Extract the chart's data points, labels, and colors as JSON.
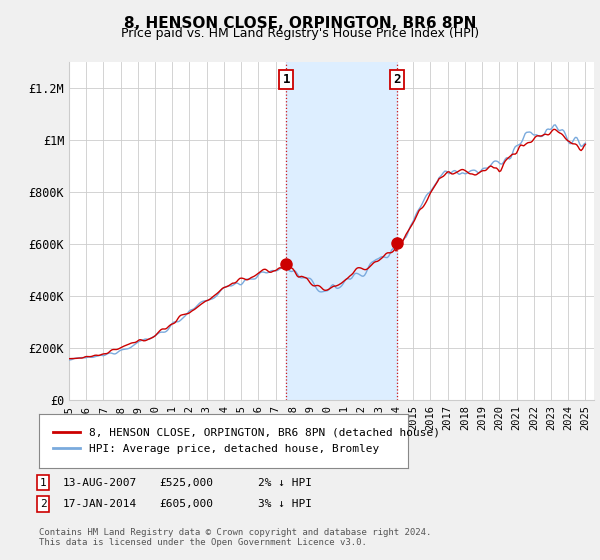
{
  "title": "8, HENSON CLOSE, ORPINGTON, BR6 8PN",
  "subtitle": "Price paid vs. HM Land Registry's House Price Index (HPI)",
  "ylabel_ticks": [
    "£0",
    "£200K",
    "£400K",
    "£600K",
    "£800K",
    "£1M",
    "£1.2M"
  ],
  "ytick_values": [
    0,
    200000,
    400000,
    600000,
    800000,
    1000000,
    1200000
  ],
  "ylim": [
    0,
    1300000
  ],
  "xlim_start": 1995.0,
  "xlim_end": 2025.5,
  "sale1": {
    "date": "13-AUG-2007",
    "price": 525000,
    "year": 2007.62,
    "label": "1",
    "pct": "2%",
    "dir": "↓"
  },
  "sale2": {
    "date": "17-JAN-2014",
    "price": 605000,
    "year": 2014.04,
    "label": "2",
    "pct": "3%",
    "dir": "↓"
  },
  "legend_line1": "8, HENSON CLOSE, ORPINGTON, BR6 8PN (detached house)",
  "legend_line2": "HPI: Average price, detached house, Bromley",
  "footnote": "Contains HM Land Registry data © Crown copyright and database right 2024.\nThis data is licensed under the Open Government Licence v3.0.",
  "line_color_red": "#cc0000",
  "line_color_blue": "#7aaadd",
  "shade_color": "#ddeeff",
  "background_color": "#f0f0f0",
  "plot_bg": "#ffffff",
  "box_border_color": "#cc0000",
  "grid_color": "#cccccc"
}
